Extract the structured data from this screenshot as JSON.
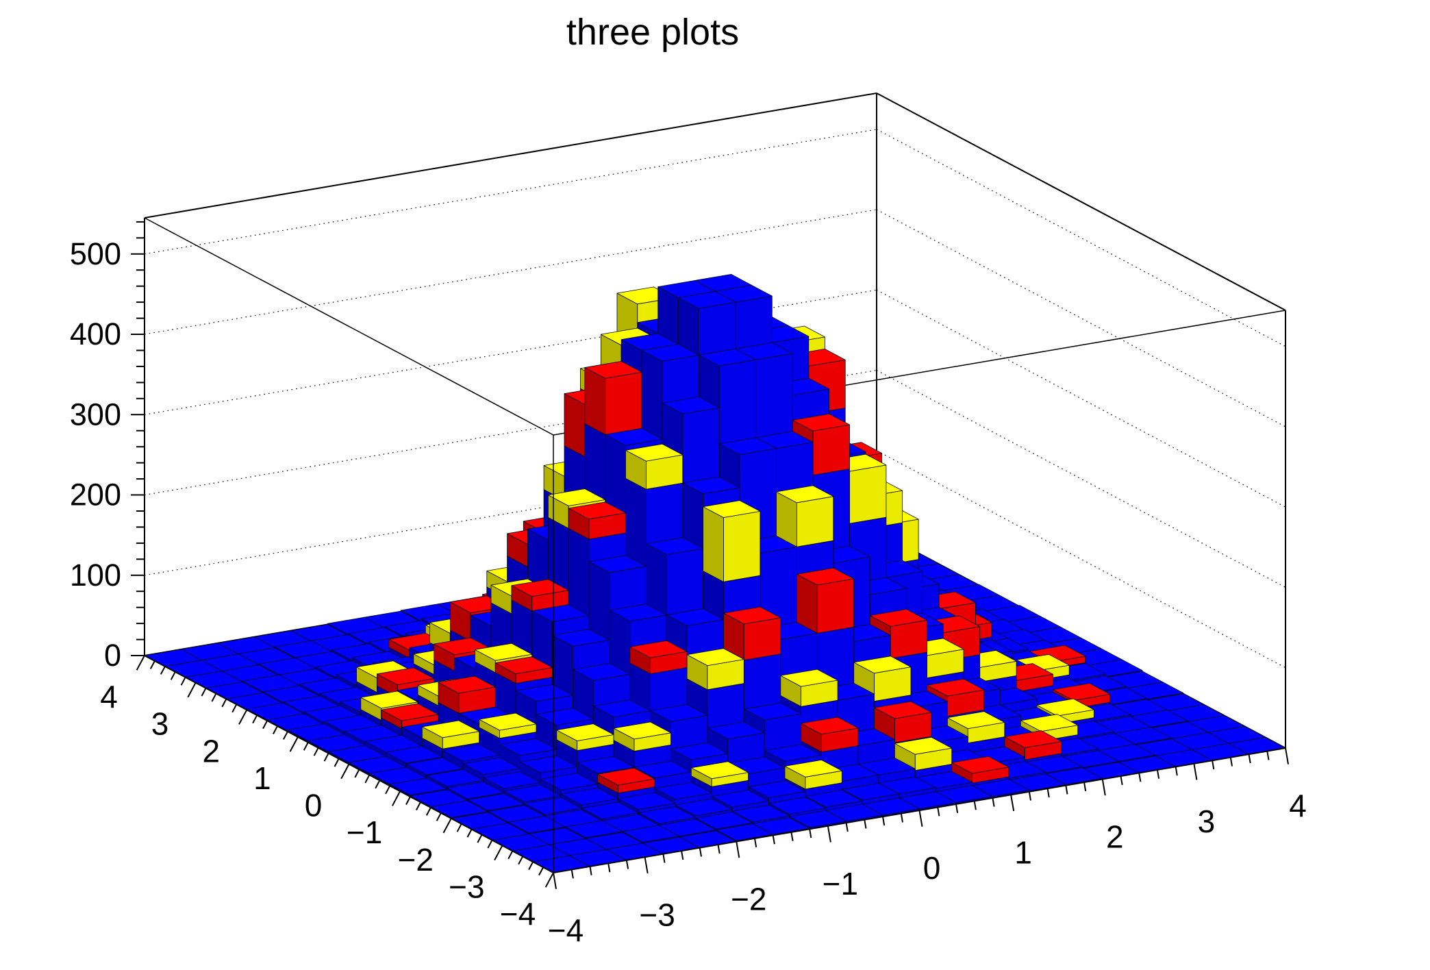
{
  "title": "three plots",
  "chart_data": {
    "type": "bar",
    "subtype": "lego3d_stacked",
    "title": "three plots",
    "x_range": [
      -4,
      4
    ],
    "y_range": [
      -4,
      4
    ],
    "bins_x": 20,
    "bins_y": 20,
    "z_axis_max": 545,
    "z_major_step": 100,
    "z_minor_step": 20,
    "xy_minor_step": 0.2,
    "grid_dotted": true,
    "x_tick_labels": [
      "−4",
      "−3",
      "−2",
      "−1",
      "0",
      "1",
      "2",
      "3",
      "4"
    ],
    "y_tick_labels": [
      "4",
      "3",
      "2",
      "1",
      "0",
      "−1",
      "−2",
      "−3",
      "−4"
    ],
    "z_tick_labels": [
      "0",
      "100",
      "200",
      "300",
      "400",
      "500"
    ],
    "stack_order": [
      "blue",
      "red",
      "yellow"
    ],
    "series": [
      {
        "name": "blue",
        "color": "#0000ff",
        "kind": "grid",
        "grid": [
          [
            0,
            0,
            0,
            0,
            0,
            1,
            1,
            2,
            2,
            2,
            2,
            2,
            2,
            1,
            1,
            0,
            0,
            0,
            0,
            0
          ],
          [
            0,
            0,
            0,
            1,
            1,
            2,
            3,
            5,
            6,
            7,
            7,
            6,
            5,
            3,
            2,
            1,
            1,
            0,
            0,
            0
          ],
          [
            0,
            0,
            1,
            1,
            3,
            5,
            8,
            12,
            15,
            17,
            17,
            15,
            12,
            8,
            5,
            3,
            1,
            1,
            0,
            0
          ],
          [
            0,
            1,
            1,
            3,
            7,
            12,
            20,
            28,
            36,
            40,
            40,
            36,
            28,
            20,
            12,
            7,
            3,
            1,
            1,
            0
          ],
          [
            0,
            1,
            3,
            7,
            14,
            25,
            40,
            58,
            74,
            83,
            83,
            74,
            58,
            40,
            25,
            14,
            7,
            3,
            1,
            0
          ],
          [
            1,
            2,
            5,
            12,
            25,
            45,
            74,
            106,
            135,
            153,
            153,
            135,
            106,
            74,
            45,
            25,
            12,
            5,
            2,
            1
          ],
          [
            1,
            3,
            8,
            20,
            40,
            74,
            120,
            172,
            219,
            247,
            247,
            219,
            172,
            120,
            74,
            40,
            20,
            8,
            3,
            1
          ],
          [
            2,
            5,
            12,
            28,
            58,
            106,
            172,
            247,
            315,
            356,
            356,
            315,
            247,
            172,
            106,
            58,
            28,
            12,
            5,
            2
          ],
          [
            2,
            6,
            15,
            36,
            74,
            135,
            219,
            315,
            401,
            453,
            453,
            401,
            315,
            219,
            135,
            74,
            36,
            15,
            6,
            2
          ],
          [
            2,
            7,
            17,
            40,
            83,
            152,
            247,
            356,
            453,
            511,
            511,
            453,
            356,
            247,
            152,
            83,
            40,
            17,
            7,
            2
          ],
          [
            2,
            7,
            17,
            40,
            83,
            152,
            247,
            356,
            453,
            511,
            511,
            453,
            356,
            247,
            152,
            83,
            40,
            17,
            7,
            2
          ],
          [
            2,
            6,
            15,
            36,
            74,
            135,
            219,
            315,
            401,
            453,
            453,
            401,
            315,
            219,
            135,
            74,
            36,
            15,
            6,
            2
          ],
          [
            2,
            5,
            12,
            28,
            58,
            106,
            172,
            247,
            315,
            356,
            356,
            315,
            247,
            172,
            106,
            58,
            28,
            12,
            5,
            2
          ],
          [
            1,
            3,
            8,
            20,
            40,
            74,
            120,
            172,
            219,
            247,
            247,
            219,
            172,
            120,
            74,
            40,
            20,
            8,
            3,
            1
          ],
          [
            1,
            2,
            5,
            12,
            25,
            45,
            74,
            106,
            135,
            153,
            153,
            135,
            106,
            74,
            45,
            25,
            12,
            5,
            2,
            1
          ],
          [
            0,
            1,
            3,
            7,
            14,
            25,
            40,
            58,
            74,
            83,
            83,
            74,
            58,
            40,
            25,
            14,
            7,
            3,
            1,
            0
          ],
          [
            0,
            1,
            1,
            3,
            7,
            12,
            20,
            28,
            36,
            40,
            40,
            36,
            28,
            20,
            12,
            7,
            3,
            1,
            1,
            0
          ],
          [
            0,
            0,
            1,
            1,
            3,
            5,
            8,
            12,
            15,
            17,
            17,
            15,
            12,
            8,
            5,
            3,
            1,
            1,
            0,
            0
          ],
          [
            0,
            0,
            0,
            1,
            1,
            2,
            3,
            5,
            6,
            7,
            7,
            6,
            5,
            3,
            2,
            1,
            1,
            0,
            0,
            0
          ],
          [
            0,
            0,
            0,
            0,
            0,
            1,
            1,
            2,
            2,
            2,
            2,
            2,
            2,
            1,
            1,
            0,
            0,
            0,
            0,
            0
          ]
        ]
      },
      {
        "name": "red",
        "color": "#ff0000",
        "kind": "sparse",
        "cells": [
          [
            4,
            12,
            20
          ],
          [
            6,
            12,
            28
          ],
          [
            5,
            13,
            35
          ],
          [
            3,
            13,
            15
          ],
          [
            7,
            13,
            22
          ],
          [
            8,
            12,
            50
          ],
          [
            5,
            10,
            18
          ],
          [
            7,
            10,
            70
          ],
          [
            6,
            9,
            25
          ],
          [
            13,
            9,
            45
          ],
          [
            12,
            9,
            60
          ],
          [
            4,
            9,
            12
          ],
          [
            2,
            11,
            10
          ],
          [
            9,
            13,
            45
          ],
          [
            11,
            13,
            25
          ],
          [
            10,
            14,
            18
          ],
          [
            12,
            12,
            30
          ],
          [
            13,
            11,
            35
          ],
          [
            14,
            10,
            28
          ],
          [
            8,
            5,
            45
          ],
          [
            10,
            5,
            60
          ],
          [
            12,
            5,
            40
          ],
          [
            9,
            3,
            22
          ],
          [
            11,
            3,
            30
          ],
          [
            13,
            4,
            25
          ],
          [
            14,
            6,
            35
          ],
          [
            15,
            8,
            30
          ],
          [
            16,
            9,
            18
          ],
          [
            15,
            12,
            15
          ],
          [
            13,
            14,
            20
          ],
          [
            11,
            15,
            15
          ],
          [
            9,
            16,
            12
          ],
          [
            7,
            15,
            18
          ],
          [
            5,
            16,
            10
          ],
          [
            16,
            6,
            14
          ],
          [
            17,
            5,
            10
          ],
          [
            14,
            2,
            15
          ],
          [
            12,
            1,
            12
          ],
          [
            6,
            6,
            20
          ],
          [
            4,
            4,
            10
          ],
          [
            3,
            10,
            25
          ],
          [
            17,
            11,
            12
          ],
          [
            18,
            8,
            8
          ],
          [
            11,
            7,
            55
          ],
          [
            7,
            11,
            65
          ]
        ]
      },
      {
        "name": "yellow",
        "color": "#ffff00",
        "kind": "sparse",
        "cells": [
          [
            3,
            14,
            18
          ],
          [
            5,
            14,
            25
          ],
          [
            4,
            13,
            12
          ],
          [
            6,
            13,
            20
          ],
          [
            2,
            12,
            15
          ],
          [
            7,
            12,
            30
          ],
          [
            5,
            11,
            22
          ],
          [
            3,
            11,
            12
          ],
          [
            8,
            11,
            45
          ],
          [
            6,
            10,
            28
          ],
          [
            4,
            10,
            15
          ],
          [
            9,
            12,
            120
          ],
          [
            10,
            12,
            90
          ],
          [
            11,
            11,
            60
          ],
          [
            8,
            6,
            80
          ],
          [
            10,
            6,
            55
          ],
          [
            12,
            7,
            65
          ],
          [
            13,
            8,
            40
          ],
          [
            7,
            5,
            30
          ],
          [
            9,
            4,
            25
          ],
          [
            11,
            4,
            35
          ],
          [
            13,
            5,
            28
          ],
          [
            15,
            6,
            18
          ],
          [
            14,
            9,
            50
          ],
          [
            15,
            11,
            25
          ],
          [
            16,
            10,
            15
          ],
          [
            14,
            12,
            20
          ],
          [
            12,
            14,
            30
          ],
          [
            10,
            15,
            22
          ],
          [
            8,
            15,
            15
          ],
          [
            6,
            16,
            12
          ],
          [
            13,
            3,
            18
          ],
          [
            15,
            3,
            12
          ],
          [
            11,
            2,
            20
          ],
          [
            8,
            2,
            15
          ],
          [
            6,
            3,
            10
          ],
          [
            4,
            6,
            12
          ],
          [
            3,
            8,
            10
          ],
          [
            2,
            9,
            14
          ],
          [
            16,
            4,
            10
          ],
          [
            17,
            7,
            12
          ],
          [
            16,
            13,
            14
          ],
          [
            5,
            5,
            15
          ],
          [
            7,
            8,
            35
          ],
          [
            12,
            10,
            75
          ],
          [
            8,
            12,
            25
          ]
        ]
      }
    ]
  }
}
